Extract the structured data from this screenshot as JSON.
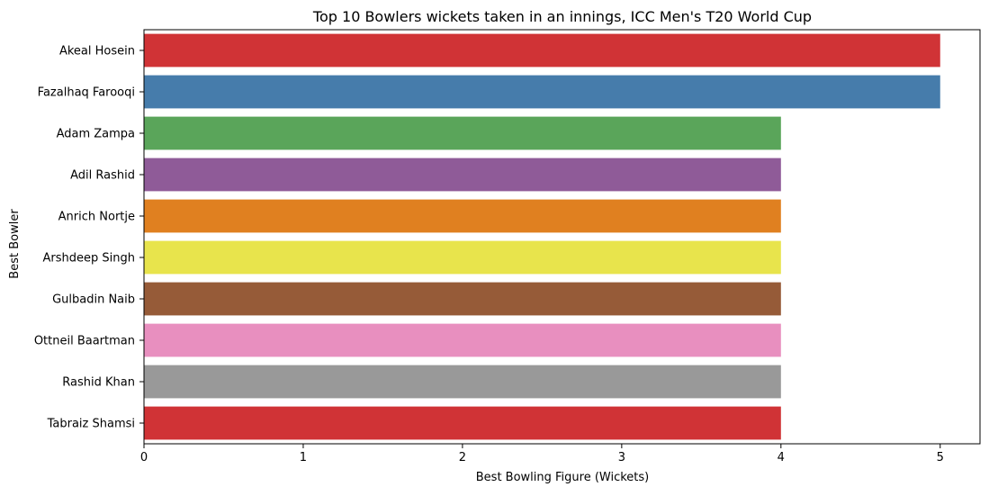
{
  "chart_data": {
    "type": "bar",
    "orientation": "horizontal",
    "title": "Top 10 Bowlers wickets taken in an innings, ICC Men's T20 World Cup",
    "xlabel": "Best Bowling Figure (Wickets)",
    "ylabel": "Best Bowler",
    "xlim": [
      0,
      5.25
    ],
    "xticks": [
      0,
      1,
      2,
      3,
      4,
      5
    ],
    "grid": false,
    "categories": [
      "Akeal Hosein",
      "Fazalhaq Farooqi",
      "Adam Zampa",
      "Adil Rashid",
      "Anrich Nortje",
      "Arshdeep Singh",
      "Gulbadin Naib",
      "Ottneil Baartman",
      "Rashid Khan",
      "Tabraiz Shamsi"
    ],
    "values": [
      5,
      5,
      4,
      4,
      4,
      4,
      4,
      4,
      4,
      4
    ],
    "colors": [
      "#d03336",
      "#467cab",
      "#5aa55a",
      "#8f5b98",
      "#e08020",
      "#e8e44c",
      "#965b38",
      "#e88fbf",
      "#999999",
      "#d03336"
    ]
  }
}
